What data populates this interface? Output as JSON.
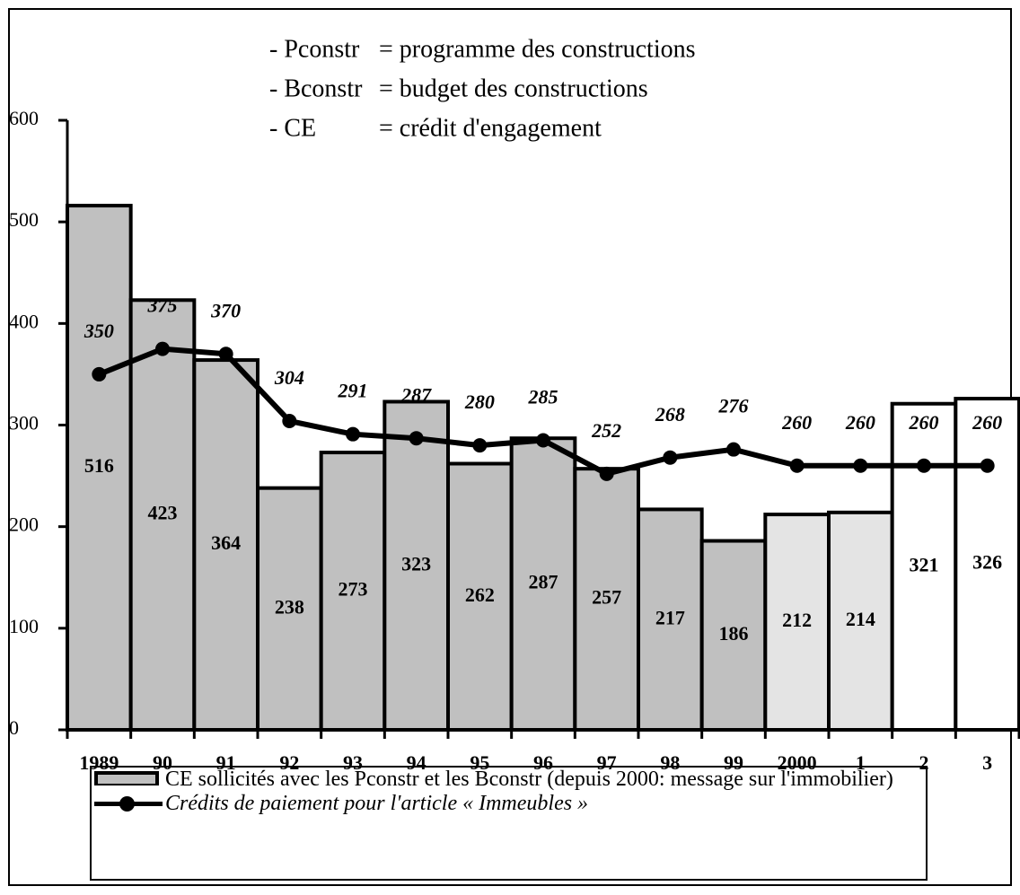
{
  "chart_data": {
    "type": "bar-line",
    "notes": [
      {
        "term": "- Pconstr",
        "definition": "= programme des constructions"
      },
      {
        "term": "- Bconstr",
        "definition": "= budget des constructions"
      },
      {
        "term": "- CE",
        "definition": "= crédit d'engagement"
      }
    ],
    "categories": [
      "1989",
      "90",
      "91",
      "92",
      "93",
      "94",
      "95",
      "96",
      "97",
      "98",
      "99",
      "2000",
      "1",
      "2",
      "3"
    ],
    "series": [
      {
        "name": "CE sollicités avec les Pconstr et les Bconstr (depuis 2000: message sur l'immobilier)",
        "type": "bar",
        "values": [
          516,
          423,
          364,
          238,
          273,
          323,
          262,
          287,
          257,
          217,
          186,
          212,
          214,
          321,
          326
        ],
        "colors": [
          "#c0c0c0",
          "#c0c0c0",
          "#c0c0c0",
          "#c0c0c0",
          "#c0c0c0",
          "#c0c0c0",
          "#c0c0c0",
          "#c0c0c0",
          "#c0c0c0",
          "#c0c0c0",
          "#c0c0c0",
          "#e4e4e4",
          "#e4e4e4",
          "#ffffff",
          "#ffffff"
        ]
      },
      {
        "name": "Crédits de paiement pour l'article « Immeubles »",
        "type": "line",
        "color": "#000000",
        "values": [
          350,
          375,
          370,
          304,
          291,
          287,
          280,
          285,
          252,
          268,
          276,
          260,
          260,
          260,
          260
        ]
      }
    ],
    "ylim": [
      0,
      600
    ],
    "yticks": [
      0,
      100,
      200,
      300,
      400,
      500,
      600
    ]
  }
}
